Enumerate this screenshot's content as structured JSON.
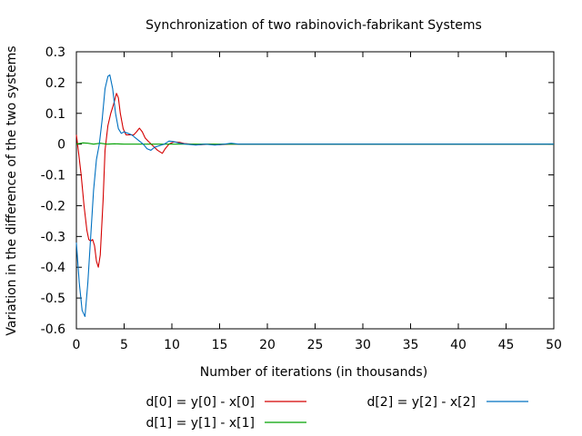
{
  "chart_data": {
    "type": "line",
    "title": "Synchronization of two rabinovich-fabrikant Systems",
    "xlabel": "Number of iterations (in thousands)",
    "ylabel": "Variation in the difference of the two systems",
    "xlim": [
      0,
      50
    ],
    "ylim": [
      -0.6,
      0.3
    ],
    "xticks": [
      0,
      5,
      10,
      15,
      20,
      25,
      30,
      35,
      40,
      45,
      50
    ],
    "yticks": [
      -0.6,
      -0.5,
      -0.4,
      -0.3,
      -0.2,
      -0.1,
      0,
      0.1,
      0.2,
      0.3
    ],
    "grid": false,
    "legend_position": "bottom",
    "series": [
      {
        "name": "d[0] = y[0] - x[0]",
        "color": "#d40000",
        "points": [
          [
            0,
            0.03
          ],
          [
            0.2,
            -0.02
          ],
          [
            0.5,
            -0.1
          ],
          [
            0.8,
            -0.2
          ],
          [
            1.1,
            -0.28
          ],
          [
            1.3,
            -0.31
          ],
          [
            1.5,
            -0.315
          ],
          [
            1.7,
            -0.31
          ],
          [
            1.9,
            -0.33
          ],
          [
            2.1,
            -0.38
          ],
          [
            2.3,
            -0.4
          ],
          [
            2.5,
            -0.36
          ],
          [
            2.8,
            -0.18
          ],
          [
            3.0,
            -0.02
          ],
          [
            3.3,
            0.06
          ],
          [
            3.6,
            0.1
          ],
          [
            3.9,
            0.13
          ],
          [
            4.2,
            0.165
          ],
          [
            4.4,
            0.15
          ],
          [
            4.6,
            0.1
          ],
          [
            4.9,
            0.05
          ],
          [
            5.2,
            0.03
          ],
          [
            5.6,
            0.03
          ],
          [
            6.0,
            0.03
          ],
          [
            6.3,
            0.04
          ],
          [
            6.6,
            0.052
          ],
          [
            6.9,
            0.04
          ],
          [
            7.2,
            0.02
          ],
          [
            7.5,
            0.01
          ],
          [
            8.0,
            -0.005
          ],
          [
            8.5,
            -0.02
          ],
          [
            9.0,
            -0.03
          ],
          [
            9.3,
            -0.015
          ],
          [
            9.7,
            0.0
          ],
          [
            10.2,
            0.007
          ],
          [
            10.8,
            0.006
          ],
          [
            11.3,
            0.002
          ],
          [
            12.0,
            0.0
          ],
          [
            13.0,
            -0.002
          ],
          [
            14.0,
            0.0
          ],
          [
            15.0,
            -0.002
          ],
          [
            16.0,
            0.0
          ],
          [
            18.0,
            0.0
          ],
          [
            50,
            0.0
          ]
        ]
      },
      {
        "name": "d[1] = y[1] - x[1]",
        "color": "#00a000",
        "points": [
          [
            0,
            0.0
          ],
          [
            0.3,
            0.002
          ],
          [
            0.7,
            0.004
          ],
          [
            1.2,
            0.003
          ],
          [
            1.8,
            0.0
          ],
          [
            2.5,
            0.003
          ],
          [
            3.2,
            0.0
          ],
          [
            4.0,
            0.001
          ],
          [
            5.0,
            0.0
          ],
          [
            50,
            0.0
          ]
        ]
      },
      {
        "name": "d[2] = y[2] - x[2]",
        "color": "#0070c0",
        "points": [
          [
            0,
            -0.32
          ],
          [
            0.3,
            -0.45
          ],
          [
            0.6,
            -0.54
          ],
          [
            0.9,
            -0.56
          ],
          [
            1.2,
            -0.45
          ],
          [
            1.5,
            -0.3
          ],
          [
            1.8,
            -0.15
          ],
          [
            2.1,
            -0.05
          ],
          [
            2.4,
            0.0
          ],
          [
            2.7,
            0.08
          ],
          [
            3.0,
            0.18
          ],
          [
            3.3,
            0.22
          ],
          [
            3.5,
            0.225
          ],
          [
            3.8,
            0.18
          ],
          [
            4.1,
            0.1
          ],
          [
            4.4,
            0.05
          ],
          [
            4.7,
            0.035
          ],
          [
            5.0,
            0.04
          ],
          [
            5.4,
            0.035
          ],
          [
            5.8,
            0.03
          ],
          [
            6.2,
            0.02
          ],
          [
            6.6,
            0.01
          ],
          [
            7.0,
            0.0
          ],
          [
            7.4,
            -0.015
          ],
          [
            7.8,
            -0.02
          ],
          [
            8.2,
            -0.01
          ],
          [
            8.7,
            -0.005
          ],
          [
            9.2,
            0.0
          ],
          [
            9.7,
            0.01
          ],
          [
            10.2,
            0.008
          ],
          [
            10.8,
            0.003
          ],
          [
            11.5,
            0.0
          ],
          [
            12.5,
            -0.003
          ],
          [
            13.5,
            0.0
          ],
          [
            14.5,
            -0.003
          ],
          [
            15.5,
            0.0
          ],
          [
            16.2,
            0.003
          ],
          [
            17.0,
            0.0
          ],
          [
            50,
            0.0
          ]
        ]
      }
    ]
  }
}
